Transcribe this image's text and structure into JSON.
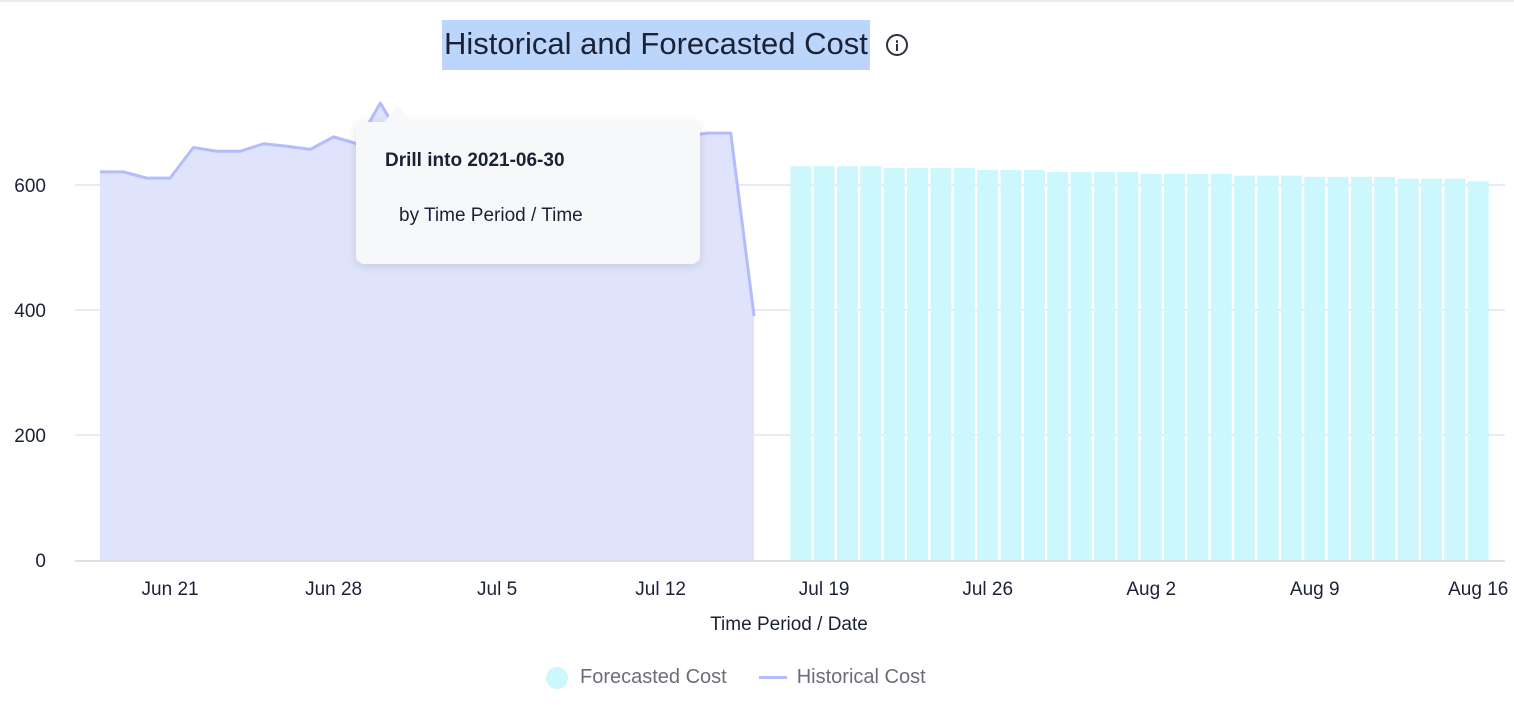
{
  "chart_data": {
    "type": "area+bar",
    "title": "Historical and Forecasted Cost",
    "xlabel": "Time Period / Date",
    "ylabel": "",
    "ylim": [
      0,
      700
    ],
    "yticks": [
      0,
      200,
      400,
      600
    ],
    "grid": true,
    "legend_placement": "bottom",
    "xticks": [
      {
        "date": "2021-06-21",
        "label": "Jun 21"
      },
      {
        "date": "2021-06-28",
        "label": "Jun 28"
      },
      {
        "date": "2021-07-05",
        "label": "Jul 5"
      },
      {
        "date": "2021-07-12",
        "label": "Jul 12"
      },
      {
        "date": "2021-07-19",
        "label": "Jul 19"
      },
      {
        "date": "2021-07-26",
        "label": "Jul 26"
      },
      {
        "date": "2021-08-02",
        "label": "Aug 2"
      },
      {
        "date": "2021-08-09",
        "label": "Aug 9"
      },
      {
        "date": "2021-08-16",
        "label": "Aug 16"
      }
    ],
    "series": [
      {
        "name": "Historical Cost",
        "kind": "area",
        "color": "#b3bdfb",
        "fill": "#e0e3fc",
        "start": "2021-06-18",
        "values": [
          621,
          621,
          611,
          611,
          660,
          654,
          654,
          666,
          662,
          657,
          677,
          666,
          731,
          668,
          670,
          672,
          669,
          674,
          676,
          673,
          678,
          680,
          677,
          679,
          681,
          678,
          683,
          683,
          390
        ]
      },
      {
        "name": "Forecasted Cost",
        "kind": "bar",
        "color": "#ccf7fd",
        "start": "2021-07-18",
        "values": [
          630,
          630,
          630,
          630,
          627,
          627,
          627,
          627,
          624,
          624,
          624,
          621,
          621,
          621,
          621,
          618,
          618,
          618,
          618,
          615,
          615,
          615,
          613,
          613,
          613,
          613,
          610,
          610,
          610,
          606
        ]
      }
    ]
  },
  "tooltip": {
    "title": "Drill into 2021-06-30",
    "subtitle": "by Time Period / Time"
  },
  "legend": {
    "forecasted": "Forecasted Cost",
    "historical": "Historical Cost"
  }
}
